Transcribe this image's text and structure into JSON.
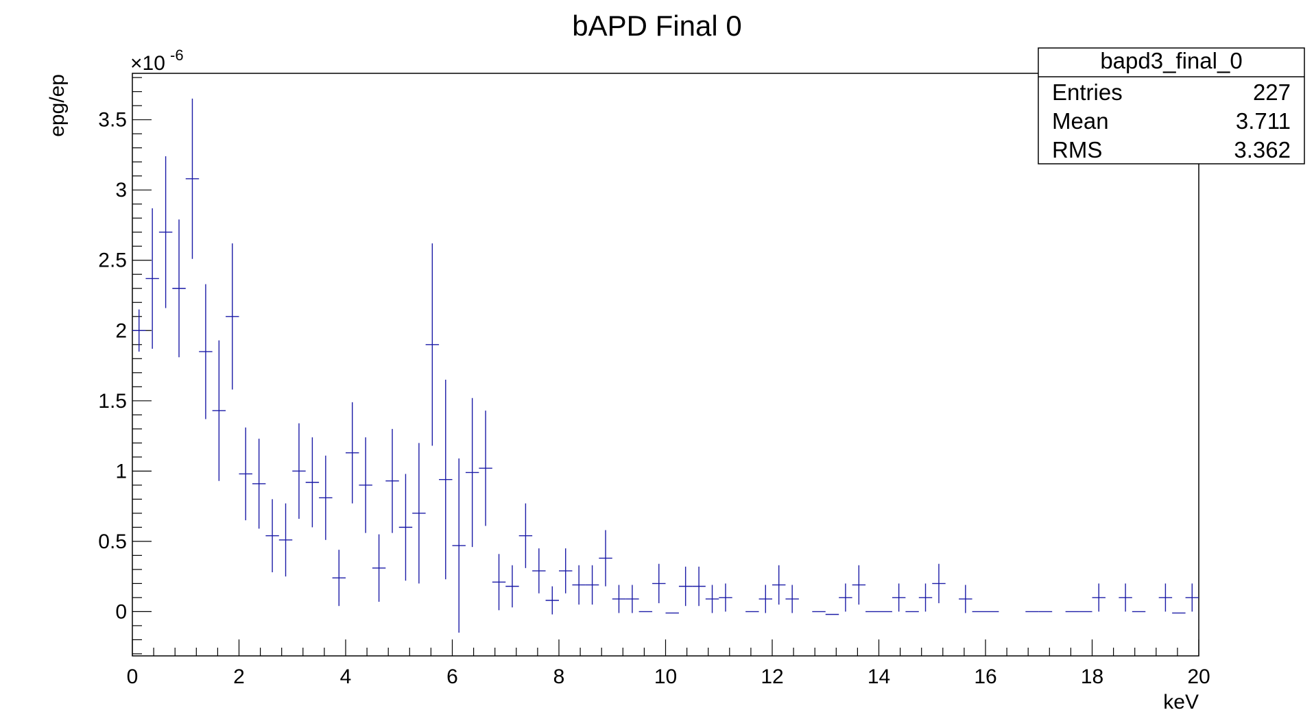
{
  "chart_data": {
    "type": "scatter",
    "title": "bAPD Final 0",
    "xlabel": "keV",
    "ylabel": "epg/ep",
    "y_exponent_label": "×10",
    "y_exponent_power": "-6",
    "xlim": [
      0,
      20
    ],
    "ylim": [
      -3.15e-07,
      3.83e-06
    ],
    "x_ticks": [
      0,
      2,
      4,
      6,
      8,
      10,
      12,
      14,
      16,
      18,
      20
    ],
    "x_tick_labels": [
      "0",
      "2",
      "4",
      "6",
      "8",
      "10",
      "12",
      "14",
      "16",
      "18",
      "20"
    ],
    "y_ticks": [
      0,
      5e-07,
      1e-06,
      1.5e-06,
      2e-06,
      2.5e-06,
      3e-06,
      3.5e-06
    ],
    "y_tick_labels": [
      "0",
      "0.5",
      "1",
      "1.5",
      "2",
      "2.5",
      "3",
      "3.5"
    ],
    "bin_width": 0.25,
    "grid": false,
    "color": "#1a1aa6",
    "series": [
      {
        "x": [
          0.125,
          0.375,
          0.625,
          0.875,
          1.125,
          1.375,
          1.625,
          1.875,
          2.125,
          2.375,
          2.625,
          2.875,
          3.125,
          3.375,
          3.625,
          3.875,
          4.125,
          4.375,
          4.625,
          4.875,
          5.125,
          5.375,
          5.625,
          5.875,
          6.125,
          6.375,
          6.625,
          6.875,
          7.125,
          7.375,
          7.625,
          7.875,
          8.125,
          8.375,
          8.625,
          8.875,
          9.125,
          9.375,
          9.625,
          9.875,
          10.125,
          10.375,
          10.625,
          10.875,
          11.125,
          11.625,
          11.875,
          12.125,
          12.375,
          12.875,
          13.125,
          13.375,
          13.625,
          13.875,
          14.125,
          14.375,
          14.625,
          14.875,
          15.125,
          15.625,
          15.875,
          16.125,
          16.875,
          17.125,
          17.625,
          17.875,
          18.125,
          18.625,
          18.875,
          19.375,
          19.625,
          19.875
        ],
        "y": [
          2e-06,
          2.37e-06,
          2.7e-06,
          2.3e-06,
          3.08e-06,
          1.85e-06,
          1.43e-06,
          2.1e-06,
          9.8e-07,
          9.1e-07,
          5.4e-07,
          5.1e-07,
          1e-06,
          9.2e-07,
          8.1e-07,
          2.4e-07,
          1.13e-06,
          9e-07,
          3.1e-07,
          9.3e-07,
          6e-07,
          7e-07,
          1.9e-06,
          9.4e-07,
          4.7e-07,
          9.9e-07,
          1.02e-06,
          2.1e-07,
          1.8e-07,
          5.4e-07,
          2.9e-07,
          8e-08,
          2.9e-07,
          1.9e-07,
          1.9e-07,
          3.8e-07,
          9e-08,
          9e-08,
          0,
          2e-07,
          -1e-08,
          1.8e-07,
          1.8e-07,
          9e-08,
          1e-07,
          0,
          9e-08,
          1.9e-07,
          9e-08,
          0,
          -2e-08,
          1e-07,
          1.9e-07,
          0,
          0,
          1e-07,
          0,
          1e-07,
          2e-07,
          9e-08,
          0,
          0,
          0,
          0,
          0,
          0,
          1e-07,
          1e-07,
          0,
          1e-07,
          -1e-08,
          1e-07
        ],
        "err": [
          1.5e-07,
          5e-07,
          5.4e-07,
          4.9e-07,
          5.7e-07,
          4.8e-07,
          5e-07,
          5.2e-07,
          3.3e-07,
          3.2e-07,
          2.6e-07,
          2.6e-07,
          3.4e-07,
          3.2e-07,
          3e-07,
          2e-07,
          3.6e-07,
          3.4e-07,
          2.4e-07,
          3.7e-07,
          3.8e-07,
          5e-07,
          7.2e-07,
          7.1e-07,
          6.2e-07,
          5.3e-07,
          4.1e-07,
          2e-07,
          1.5e-07,
          2.3e-07,
          1.6e-07,
          1e-07,
          1.6e-07,
          1.4e-07,
          1.4e-07,
          2e-07,
          1e-07,
          1e-07,
          0,
          1.4e-07,
          0,
          1.4e-07,
          1.4e-07,
          1e-07,
          1e-07,
          0,
          1e-07,
          1.4e-07,
          1e-07,
          0,
          0,
          1e-07,
          1.4e-07,
          0,
          0,
          1e-07,
          0,
          1e-07,
          1.4e-07,
          1e-07,
          0,
          0,
          0,
          0,
          0,
          0,
          1e-07,
          1e-07,
          0,
          1e-07,
          0,
          1e-07
        ]
      }
    ]
  },
  "stats_box": {
    "name": "bapd3_final_0",
    "rows": [
      {
        "label": "Entries",
        "value": "227"
      },
      {
        "label": "Mean",
        "value": "3.711"
      },
      {
        "label": "RMS",
        "value": "3.362"
      }
    ]
  }
}
